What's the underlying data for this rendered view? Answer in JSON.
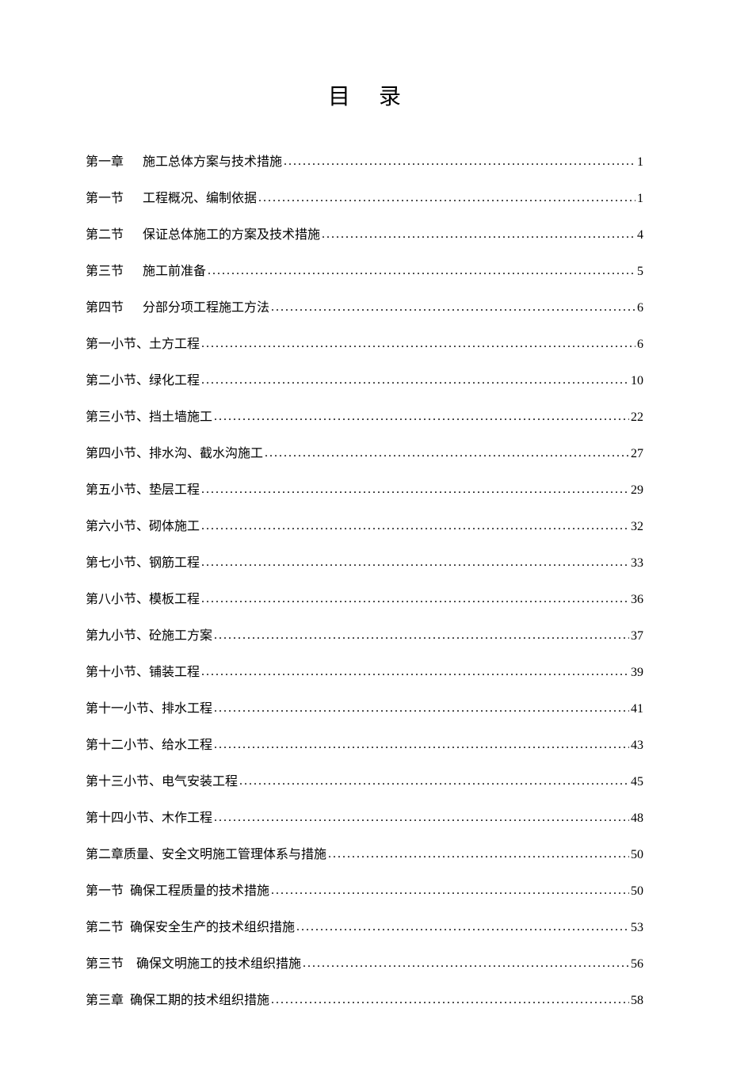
{
  "document": {
    "title": "目录",
    "background_color": "#ffffff",
    "text_color": "#000000",
    "title_fontsize": 28,
    "body_fontsize": 16,
    "line_spacing": 22,
    "toc": [
      {
        "chapter": "第一章",
        "gap": 24,
        "title": "施工总体方案与技术措施",
        "page": "1"
      },
      {
        "chapter": "第一节",
        "gap": 24,
        "title": "工程概况、编制依据",
        "page": "1"
      },
      {
        "chapter": "第二节",
        "gap": 24,
        "title": "保证总体施工的方案及技术措施",
        "page": "4"
      },
      {
        "chapter": "第三节",
        "gap": 24,
        "title": "施工前准备",
        "page": "5"
      },
      {
        "chapter": "第四节",
        "gap": 24,
        "title": "分部分项工程施工方法",
        "page": "6"
      },
      {
        "chapter": "第一小节、",
        "gap": 0,
        "title": "土方工程",
        "page": "6"
      },
      {
        "chapter": "第二小节、",
        "gap": 0,
        "title": "绿化工程",
        "page": "10"
      },
      {
        "chapter": "第三小节、",
        "gap": 0,
        "title": "挡土墙施工",
        "page": "22"
      },
      {
        "chapter": "第四小节、",
        "gap": 0,
        "title": "排水沟、截水沟施工",
        "page": "27"
      },
      {
        "chapter": "第五小节、",
        "gap": 0,
        "title": "垫层工程",
        "page": "29"
      },
      {
        "chapter": "第六小节、",
        "gap": 0,
        "title": "砌体施工",
        "page": "32"
      },
      {
        "chapter": "第七小节、",
        "gap": 0,
        "title": "钢筋工程",
        "page": "33"
      },
      {
        "chapter": "第八小节、",
        "gap": 0,
        "title": "模板工程",
        "page": "36"
      },
      {
        "chapter": "第九小节、",
        "gap": 0,
        "title": "砼施工方案",
        "page": "37"
      },
      {
        "chapter": "第十小节、",
        "gap": 0,
        "title": "铺装工程",
        "page": "39"
      },
      {
        "chapter": "第十一小节、",
        "gap": 0,
        "title": "排水工程",
        "page": "41"
      },
      {
        "chapter": "第十二小节、",
        "gap": 0,
        "title": "给水工程",
        "page": "43"
      },
      {
        "chapter": "第十三小节、",
        "gap": 0,
        "title": "电气安装工程",
        "page": "45"
      },
      {
        "chapter": "第十四小节、",
        "gap": 0,
        "title": "木作工程",
        "page": "48"
      },
      {
        "chapter": "第二章",
        "gap": 0,
        "title": "质量、安全文明施工管理体系与措施",
        "page": "50"
      },
      {
        "chapter": "第一节",
        "gap": 8,
        "title": "确保工程质量的技术措施",
        "page": "50"
      },
      {
        "chapter": "第二节",
        "gap": 8,
        "title": "确保安全生产的技术组织措施",
        "page": "53"
      },
      {
        "chapter": "第三节",
        "gap": 16,
        "title": "确保文明施工的技术组织措施",
        "page": "56"
      },
      {
        "chapter": "第三章",
        "gap": 8,
        "title": "确保工期的技术组织措施",
        "page": "58"
      }
    ]
  }
}
